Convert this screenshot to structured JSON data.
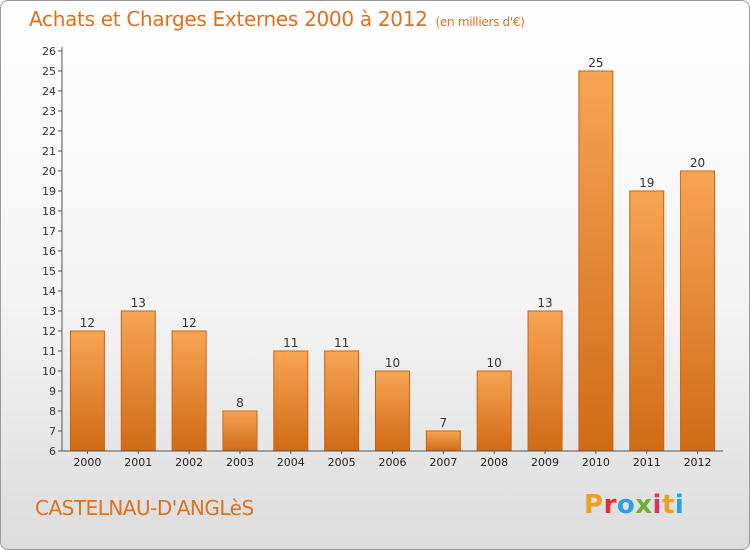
{
  "header": {
    "title": "Achats et Charges Externes 2000 à 2012",
    "subtitle": "(en milliers d'€)"
  },
  "footer": {
    "commune": "CASTELNAU-D'ANGLèS",
    "logo_letters": [
      "P",
      "r",
      "o",
      "x",
      "i",
      "t",
      "i"
    ],
    "logo_colors": [
      "#f0a020",
      "#e03030",
      "#2aa0e0",
      "#70b030",
      "#e03060",
      "#f0a020",
      "#2aa0e0"
    ]
  },
  "chart_data": {
    "type": "bar",
    "title": "Achats et Charges Externes 2000 à 2012",
    "subtitle": "(en milliers d'€)",
    "categories": [
      "2000",
      "2001",
      "2002",
      "2003",
      "2004",
      "2005",
      "2006",
      "2007",
      "2008",
      "2009",
      "2010",
      "2011",
      "2012"
    ],
    "values": [
      12,
      13,
      12,
      8,
      11,
      11,
      10,
      7,
      10,
      13,
      25,
      19,
      20
    ],
    "data_labels": [
      "12",
      "13",
      "12",
      "8",
      "11",
      "11",
      "10",
      "7",
      "10",
      "13",
      "25",
      "19",
      "20"
    ],
    "ylim": [
      6,
      26
    ],
    "yticks": [
      "6",
      "7",
      "8",
      "9",
      "10",
      "11",
      "12",
      "13",
      "14",
      "15",
      "16",
      "17",
      "18",
      "19",
      "20",
      "21",
      "22",
      "23",
      "24",
      "25",
      "26"
    ],
    "xlabel": "",
    "ylabel": "",
    "grid": false,
    "colors": {
      "bar_light": "#f7a555",
      "bar_dark": "#d06a15",
      "bar_edge": "#c86410",
      "axis": "#555555"
    }
  }
}
